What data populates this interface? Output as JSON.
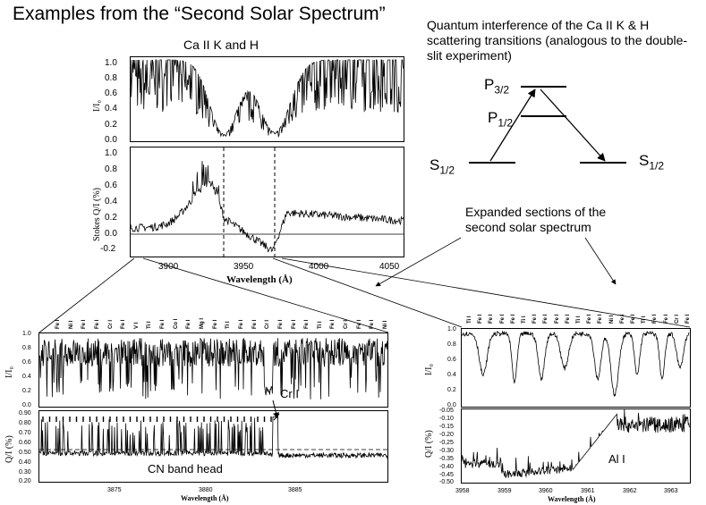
{
  "title": "Examples from the “Second Solar Spectrum”",
  "top_chart_title": "Ca II  K  and  H",
  "top_intensity": {
    "ylabel": "I/I₀",
    "yticks": [
      "1.0",
      "0.8",
      "0.6",
      "0.4",
      "0.2",
      "0.0"
    ]
  },
  "top_polarization": {
    "ylabel": "Stokes Q/I (%)",
    "yticks": [
      "1.0",
      "0.8",
      "0.6",
      "0.4",
      "0.2",
      "0.0",
      "-0.2"
    ]
  },
  "top_xaxis": {
    "ticks": [
      "3900",
      "3950",
      "4000",
      "4050"
    ],
    "xlabel": "Wavelength (Å)"
  },
  "quantum_note": "Quantum interference of the Ca II K & H scattering transitions (analogous to the double-slit experiment)",
  "levels": {
    "p32_main": "P",
    "p32_sub": "3/2",
    "p12_main": "P",
    "p12_sub": "1/2",
    "s12_left_main": "S",
    "s12_left_sub": "1/2",
    "s12_right_main": "S",
    "s12_right_sub": "1/2"
  },
  "expanded_note": "Expanded sections of the second solar spectrum",
  "left_detail": {
    "intensity_ylabel": "I/I₀",
    "intensity_yticks": [
      "1.0",
      "0.8",
      "0.6",
      "0.4",
      "0.2",
      "0.0"
    ],
    "pol_ylabel": "Q/I (%)",
    "pol_yticks": [
      "0.90",
      "0.80",
      "0.70",
      "0.60",
      "0.50",
      "0.40",
      "0.30",
      "0.20"
    ],
    "xticks": [
      "3875",
      "3880",
      "3885"
    ],
    "xlabel": "Wavelength (Å)",
    "cr_label": "Cr I",
    "cn_label": "CN band head",
    "line_ids": [
      "Fe I",
      "Ni I",
      "Fe I",
      "Fe I",
      "Cr I",
      "Fe I",
      "V I",
      "Ti I",
      "Fe I",
      "Co I",
      "Fe I",
      "Mg I",
      "Fe I",
      "Ti I",
      "Fe I",
      "Fe I",
      "Cr I",
      "Fe I",
      "Fe I",
      "Fe I",
      "Ti I",
      "Fe I",
      "Cr I",
      "Fe I",
      "Fe I",
      "Ni I"
    ]
  },
  "right_detail": {
    "intensity_ylabel": "I/I₀",
    "intensity_yticks": [
      "1.0",
      "0.8",
      "0.6",
      "0.4",
      "0.2",
      "0.0"
    ],
    "pol_ylabel": "Q/I (%)",
    "pol_yticks": [
      "-0.05",
      "-0.10",
      "-0.15",
      "-0.20",
      "-0.25",
      "-0.30",
      "-0.35",
      "-0.40",
      "-0.45",
      "-0.50"
    ],
    "xticks": [
      "3958",
      "3959",
      "3960",
      "3961",
      "3962",
      "3963"
    ],
    "xlabel": "Wavelength (Å)",
    "al_label": "Al I",
    "line_ids": [
      "Ti I",
      "Fe I",
      "Fe I",
      "Fe I",
      "Fe I",
      "Ti I",
      "Fe I",
      "Fe I",
      "Fe I",
      "Fe I",
      "Ti I",
      "Fe I",
      "Fe I",
      "Ni I",
      "Fe I",
      "Fe I",
      "Ti I",
      "Fe I",
      "Fe I",
      "Cr I",
      "Fe I"
    ]
  }
}
